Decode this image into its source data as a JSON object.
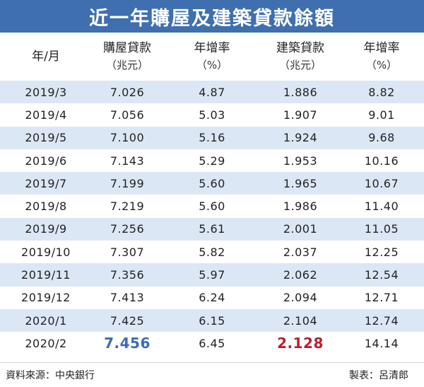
{
  "title": "近一年購屋及建築貸款餘額",
  "headers": [
    {
      "line1": "年/月",
      "line2": ""
    },
    {
      "line1": "購屋貸款",
      "line2": "（兆元）"
    },
    {
      "line1": "年增率",
      "line2": "（%）"
    },
    {
      "line1": "建築貸款",
      "line2": "（兆元）"
    },
    {
      "line1": "年增率",
      "line2": "（%）"
    }
  ],
  "chart_data": {
    "type": "table",
    "title": "近一年購屋及建築貸款餘額",
    "columns": [
      "年/月",
      "購屋貸款（兆元）",
      "年增率（%）",
      "建築貸款（兆元）",
      "年增率（%）"
    ],
    "rows": [
      [
        "2019/3",
        "7.026",
        "4.87",
        "1.886",
        "8.82"
      ],
      [
        "2019/4",
        "7.056",
        "5.03",
        "1.907",
        "9.01"
      ],
      [
        "2019/5",
        "7.100",
        "5.16",
        "1.924",
        "9.68"
      ],
      [
        "2019/6",
        "7.143",
        "5.29",
        "1.953",
        "10.16"
      ],
      [
        "2019/7",
        "7.199",
        "5.60",
        "1.965",
        "10.67"
      ],
      [
        "2019/8",
        "7.219",
        "5.60",
        "1.986",
        "11.40"
      ],
      [
        "2019/9",
        "7.256",
        "5.61",
        "2.001",
        "11.05"
      ],
      [
        "2019/10",
        "7.307",
        "5.82",
        "2.037",
        "12.25"
      ],
      [
        "2019/11",
        "7.356",
        "5.97",
        "2.062",
        "12.54"
      ],
      [
        "2019/12",
        "7.413",
        "6.24",
        "2.094",
        "12.71"
      ],
      [
        "2020/1",
        "7.425",
        "6.15",
        "2.104",
        "12.74"
      ],
      [
        "2020/2",
        "7.456",
        "6.45",
        "2.128",
        "14.14"
      ]
    ],
    "highlights": {
      "home_loan_latest_color": "#3b6cb5",
      "construction_loan_latest_color": "#b5202e"
    }
  },
  "footer": {
    "source": "資料來源：中央銀行",
    "credit": "製表：呂清郎"
  },
  "colors": {
    "title_bg": "#3f6fae",
    "stripe": "#dce7f5"
  }
}
